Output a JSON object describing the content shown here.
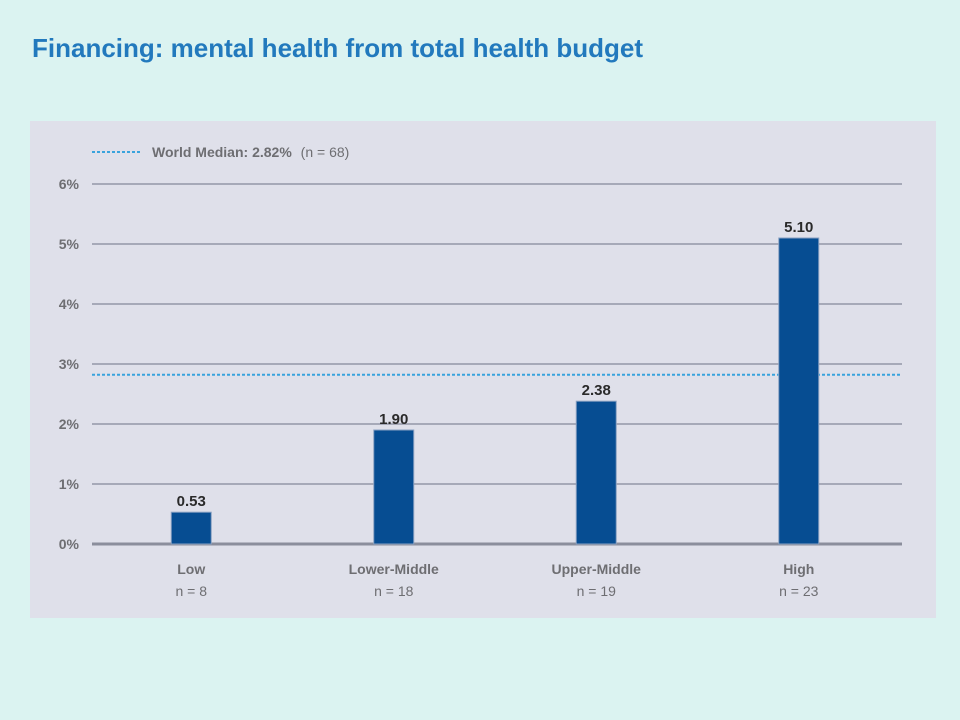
{
  "slide": {
    "title": "Financing: mental health from total health budget"
  },
  "chart_data": {
    "type": "bar",
    "categories": [
      "Low",
      "Lower-Middle",
      "Upper-Middle",
      "High"
    ],
    "category_notes": [
      "n = 8",
      "n = 18",
      "n = 19",
      "n = 23"
    ],
    "values": [
      0.53,
      1.9,
      2.38,
      5.1
    ],
    "value_labels": [
      "0.53",
      "1.90",
      "2.38",
      "5.10"
    ],
    "ylim": [
      0,
      6
    ],
    "yticks": [
      0,
      1,
      2,
      3,
      4,
      5,
      6
    ],
    "ytick_labels": [
      "0%",
      "1%",
      "2%",
      "3%",
      "4%",
      "5%",
      "6%"
    ],
    "reference_line": {
      "value": 2.82,
      "label": "World Median: 2.82%",
      "note": "(n = 68)"
    },
    "grid": true,
    "legend_position": "top-left",
    "colors": {
      "bar": "#064d92",
      "bar_edge": "#8aa1c2",
      "gridline": "#a6a9b8",
      "baseline": "#8b8e9c",
      "reference_line": "#39a3dd",
      "label_text": "#2a2a2a",
      "axis_text": "#6e6e72"
    }
  }
}
